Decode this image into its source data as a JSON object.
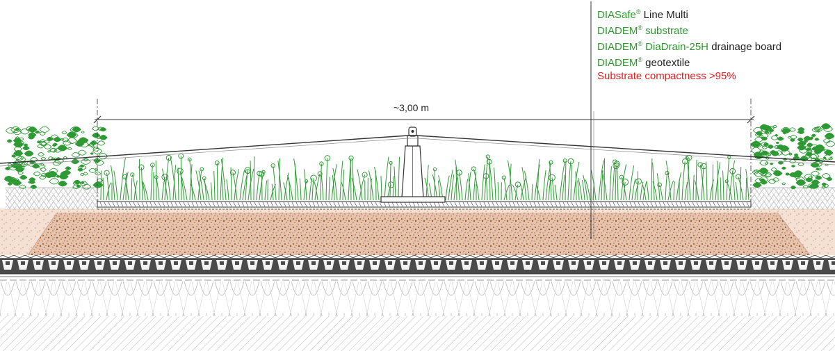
{
  "legend": {
    "items": [
      {
        "brand": "DIASafe",
        "mark": "®",
        "rest": " Line Multi"
      },
      {
        "brand": "DIADEM",
        "mark": "®",
        "rest": " substrate"
      },
      {
        "brand": "DIADEM",
        "mark": "®",
        "rest": " DiaDrain-25H",
        "tail": " drainage board"
      },
      {
        "brand": "DIADEM",
        "mark": "®",
        "rest": " geotextile"
      }
    ],
    "warning": "Substrate compactness >95%"
  },
  "dimension": {
    "label": "~3,00 m"
  },
  "colors": {
    "brand": "#2e9a2e",
    "warning": "#e02020",
    "plants": "#2f9a35",
    "substrate": "#b5754f"
  }
}
